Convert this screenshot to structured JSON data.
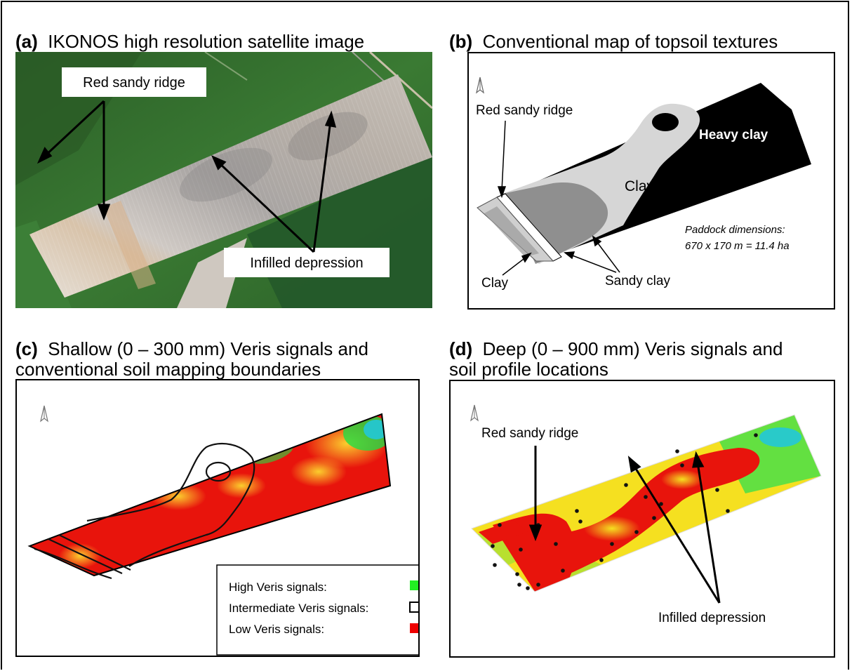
{
  "panel_a": {
    "letter": "(a)",
    "title": "IKONOS high resolution satellite image",
    "label_ridge": "Red sandy ridge",
    "label_depression": "Infilled depression"
  },
  "panel_b": {
    "letter": "(b)",
    "title": "Conventional map of topsoil textures",
    "label_ridge": "Red sandy ridge",
    "label_heavy_clay": "Heavy clay",
    "label_clay_upper": "Clay",
    "label_clay_lower": "Clay",
    "label_sandy_clay": "Sandy clay",
    "dimensions_line1": "Paddock dimensions:",
    "dimensions_line2": "670 x  170 m = 11.4 ha"
  },
  "panel_c": {
    "letter": "(c)",
    "title_line1": "Shallow (0 – 300 mm) Veris signals and",
    "title_line2": "conventional soil mapping boundaries"
  },
  "panel_d": {
    "letter": "(d)",
    "title_line1": "Deep (0 – 900 mm) Veris signals and",
    "title_line2": "soil profile locations",
    "label_ridge": "Red sandy ridge",
    "label_depression": "Infilled depression"
  },
  "legend": {
    "items": [
      {
        "label": "High Veris signals:",
        "color": "#22ee22"
      },
      {
        "label": "Intermediate Veris signals:",
        "color": "#ffffff"
      },
      {
        "label": "Low Veris signals:",
        "color": "#ee0000"
      }
    ]
  },
  "colors": {
    "veris_low": "#e8140c",
    "veris_mid": "#f5e020",
    "veris_high": "#22ee22",
    "veris_very_high": "#1a2fd0",
    "satellite_green": "#2f6a2c",
    "paddock_light": "#d9d2c9"
  }
}
